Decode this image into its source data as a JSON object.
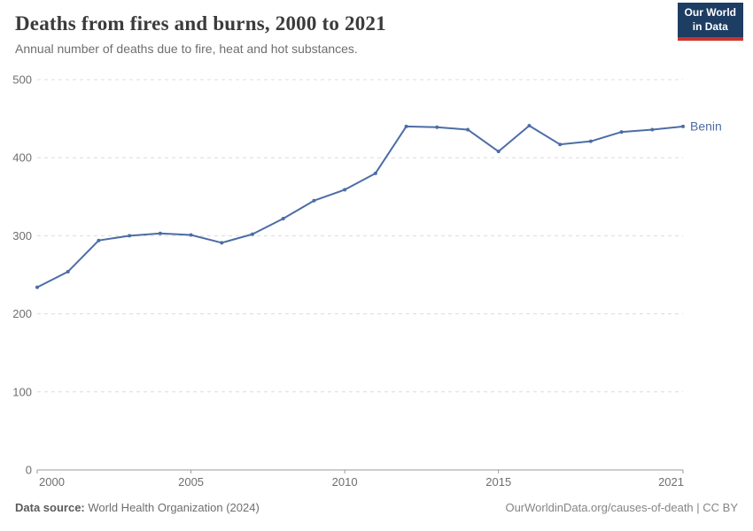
{
  "header": {
    "title": "Deaths from fires and burns, 2000 to 2021",
    "subtitle": "Annual number of deaths due to fire, heat and hot substances.",
    "logo": {
      "line1": "Our World",
      "line2": "in Data"
    }
  },
  "chart_data": {
    "type": "line",
    "title": "Deaths from fires and burns, 2000 to 2021",
    "xlabel": "",
    "ylabel": "",
    "x": [
      2000,
      2001,
      2002,
      2003,
      2004,
      2005,
      2006,
      2007,
      2008,
      2009,
      2010,
      2011,
      2012,
      2013,
      2014,
      2015,
      2016,
      2017,
      2018,
      2019,
      2020,
      2021
    ],
    "series": [
      {
        "name": "Benin",
        "color": "#4c6da5",
        "values": [
          234,
          254,
          294,
          300,
          303,
          301,
          291,
          302,
          322,
          345,
          359,
          380,
          440,
          439,
          436,
          408,
          441,
          417,
          421,
          433,
          436,
          440
        ]
      }
    ],
    "xlim": [
      2000,
      2021
    ],
    "ylim": [
      0,
      500
    ],
    "yticks": [
      0,
      100,
      200,
      300,
      400,
      500
    ],
    "xticks": [
      2000,
      2005,
      2010,
      2015,
      2021
    ],
    "grid": "horizontal-dashed",
    "legend_position": "end-of-line"
  },
  "footer": {
    "datasource_label": "Data source:",
    "datasource_text": " World Health Organization (2024)",
    "link": "OurWorldinData.org/causes-of-death | CC BY"
  },
  "colors": {
    "line": "#4c6da5",
    "grid": "#dcdcdc",
    "axis": "#9a9a9a",
    "title_text": "#3b3b3b",
    "muted_text": "#6e6e6e",
    "logo_bg": "#1d3d63",
    "logo_stripe": "#c9352d"
  }
}
